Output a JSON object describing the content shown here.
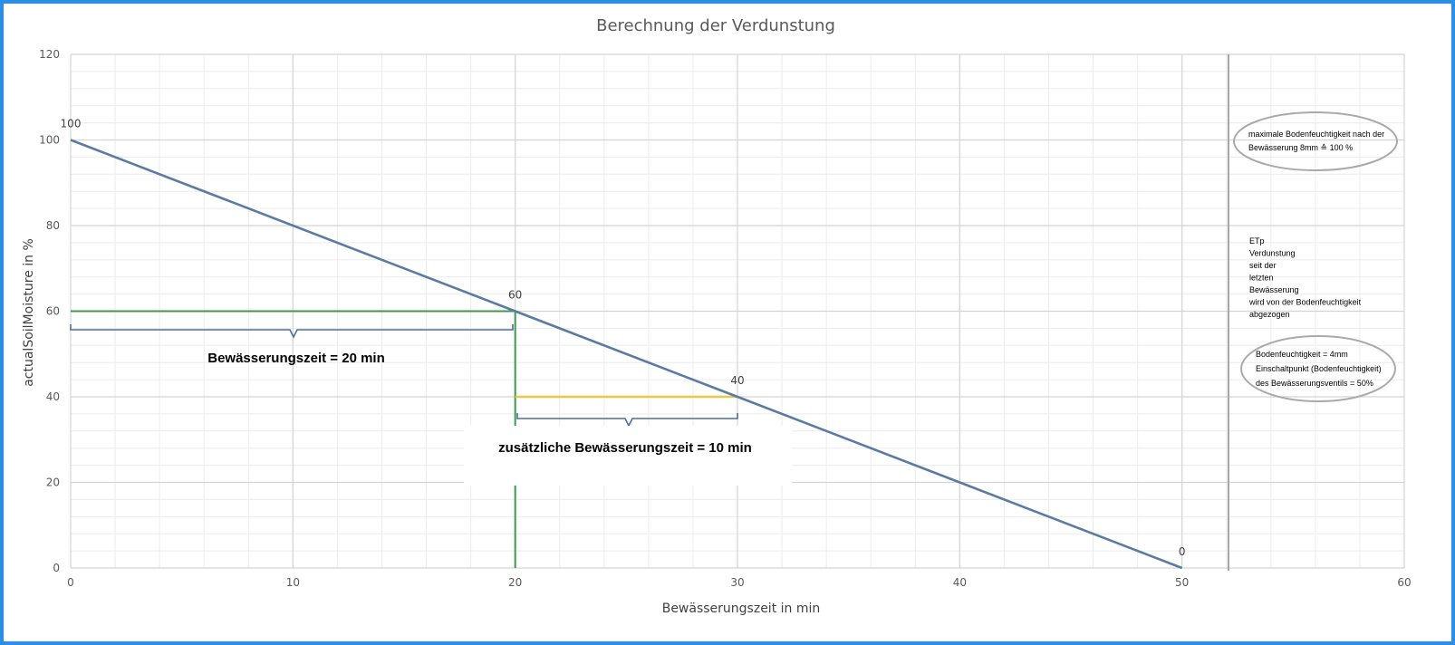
{
  "chart_data": {
    "type": "line",
    "title": "Berechnung der Verdunstung",
    "xlabel": "Bewässerungszeit in min",
    "ylabel": "actualSoilMoisture in %",
    "xlim": [
      0,
      60
    ],
    "ylim": [
      0,
      120
    ],
    "x_ticks": [
      "0",
      "10",
      "20",
      "30",
      "40",
      "50",
      "60"
    ],
    "y_ticks": [
      "0",
      "20",
      "40",
      "60",
      "80",
      "100",
      "120"
    ],
    "grid": true,
    "x": [
      0,
      20,
      30,
      50
    ],
    "series": [
      {
        "values": [
          100,
          60,
          40,
          0
        ],
        "color": "#5b7ba3"
      }
    ],
    "data_labels": [
      "100",
      "60",
      "40",
      "0"
    ],
    "accent_colors": {
      "green": "#3d9950",
      "yellow": "#e8c84a",
      "bracket": "#4a6e9c",
      "frame": "#2b8fe8"
    }
  },
  "annotations": {
    "irrigation_time": "Bewässerungszeit = 20 min",
    "additional_time": "zusätzliche Bewässerungszeit = 10 min",
    "max_moisture_line1": "maximale Bodenfeuchtigkeit nach der",
    "max_moisture_line2": "Bewässerung 8mm ≙ 100 %",
    "etp_lines": [
      "ETp",
      "Verdunstung",
      "seit der",
      "letzten",
      "Bewässerung",
      "wird von der Bodenfeuchtigkeit",
      "abgezogen"
    ],
    "soil_line1": "Bodenfeuchtigkeit = 4mm",
    "soil_line2": "Einschaltpunkt (Bodenfeuchtigkeit)",
    "soil_line3": "des Bewässerungsventils = 50%"
  }
}
